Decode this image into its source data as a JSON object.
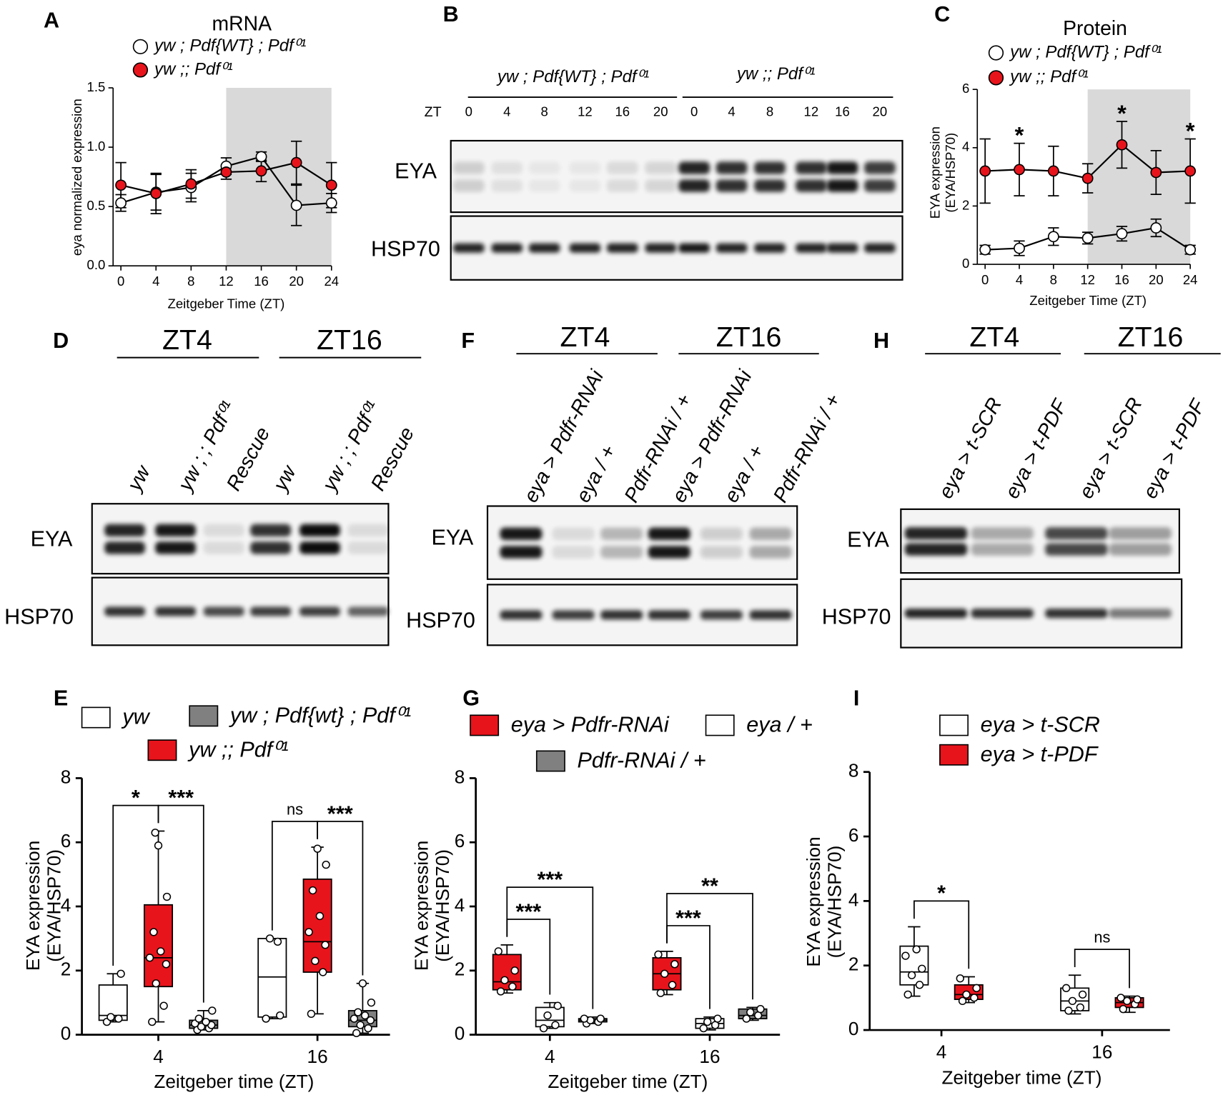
{
  "chart_data": [
    {
      "type": "line",
      "panel_label": "A",
      "title": "mRNA",
      "xlabel": "Zeitgeber Time (ZT)",
      "ylabel": "eya normalized expression",
      "x": [
        0,
        4,
        8,
        12,
        16,
        20,
        24
      ],
      "xlim": [
        0,
        24
      ],
      "xticks": [
        0,
        4,
        8,
        12,
        16,
        20,
        24
      ],
      "ylim": [
        0,
        1.5
      ],
      "yticks": [
        {
          "value": 0,
          "label": "0.0"
        },
        {
          "value": 0.5,
          "label": "0.5"
        },
        {
          "value": 1,
          "label": "1.0"
        },
        {
          "value": 1.5,
          "label": "1.5"
        }
      ],
      "shaded_x": [
        12,
        24
      ],
      "series": [
        {
          "name": "yw ; Pdf{WT} ; Pdf⁰¹",
          "color": "#ffffff",
          "values": [
            0.53,
            0.62,
            0.66,
            0.84,
            0.92,
            0.51,
            0.53
          ],
          "errors": [
            0.07,
            0.15,
            0.12,
            0.07,
            0.04,
            0.17,
            0.08
          ]
        },
        {
          "name": "yw ;; Pdf⁰¹",
          "color": "#e8141c",
          "values": [
            0.68,
            0.61,
            0.69,
            0.79,
            0.8,
            0.87,
            0.68
          ],
          "errors": [
            0.19,
            0.17,
            0.12,
            0.06,
            0.09,
            0.18,
            0.19
          ]
        }
      ]
    },
    {
      "type": "line",
      "panel_label": "C",
      "title": "Protein",
      "xlabel": "Zeitgeber Time (ZT)",
      "ylabel": [
        "EYA expression",
        "(EYA/HSP70)"
      ],
      "x": [
        0,
        4,
        8,
        12,
        16,
        20,
        24
      ],
      "xlim": [
        0,
        24
      ],
      "xticks": [
        0,
        4,
        8,
        12,
        16,
        20,
        24
      ],
      "ylim": [
        0,
        6
      ],
      "yticks": [
        0,
        2,
        4,
        6
      ],
      "shaded_x": [
        12,
        24
      ],
      "series": [
        {
          "name": "yw ; Pdf{WT} ; Pdf⁰¹",
          "color": "#ffffff",
          "values": [
            0.5,
            0.55,
            0.95,
            0.9,
            1.05,
            1.25,
            0.5
          ],
          "errors": [
            0.15,
            0.25,
            0.3,
            0.2,
            0.25,
            0.3,
            0.15
          ]
        },
        {
          "name": "yw ;; Pdf⁰¹",
          "color": "#e8141c",
          "values": [
            3.2,
            3.25,
            3.2,
            2.95,
            4.1,
            3.15,
            3.2
          ],
          "errors": [
            1.1,
            0.9,
            0.85,
            0.5,
            0.8,
            0.75,
            1.1
          ]
        }
      ],
      "annotations": [
        {
          "x": 4,
          "label": "*"
        },
        {
          "x": 16,
          "label": "*"
        },
        {
          "x": 24,
          "label": "*"
        }
      ]
    },
    {
      "type": "box",
      "panel_label": "E",
      "xlabel": "Zeitgeber time (ZT)",
      "ylabel": [
        "EYA expression",
        "(EYA/HSP70)"
      ],
      "categories": [
        "4",
        "16"
      ],
      "ylim": [
        0,
        8
      ],
      "yticks": [
        0,
        2,
        4,
        6,
        8
      ],
      "series": [
        {
          "name": "yw",
          "color": "#ffffff",
          "boxes": [
            {
              "min": 0.4,
              "q1": 0.45,
              "median": 0.6,
              "q3": 1.55,
              "max": 1.9,
              "points": [
                0.4,
                0.5,
                0.55,
                1.9
              ]
            },
            {
              "min": 0.5,
              "q1": 0.55,
              "median": 1.8,
              "q3": 3.0,
              "max": 3.0,
              "points": [
                0.5,
                2.9,
                3.0,
                0.6
              ]
            }
          ]
        },
        {
          "name": "yw ;; Pdf⁰¹",
          "color": "#e8141c",
          "boxes": [
            {
              "min": 0.4,
              "q1": 1.5,
              "median": 2.4,
              "q3": 4.05,
              "max": 6.35,
              "points": [
                0.4,
                0.9,
                1.6,
                2.2,
                2.4,
                2.6,
                3.2,
                4.3,
                5.9,
                6.3
              ]
            },
            {
              "min": 0.65,
              "q1": 1.95,
              "median": 2.9,
              "q3": 4.85,
              "max": 5.85,
              "points": [
                0.65,
                1.95,
                2.3,
                2.8,
                3.2,
                3.7,
                4.5,
                5.3,
                5.8
              ]
            }
          ]
        },
        {
          "name": "yw ; Pdf{wt} ; Pdf⁰¹",
          "color": "#808080",
          "boxes": [
            {
              "min": 0.15,
              "q1": 0.2,
              "median": 0.3,
              "q3": 0.45,
              "max": 0.75,
              "points": [
                0.15,
                0.2,
                0.25,
                0.3,
                0.35,
                0.4,
                0.5,
                0.75
              ]
            },
            {
              "min": 0.05,
              "q1": 0.25,
              "median": 0.45,
              "q3": 0.75,
              "max": 1.6,
              "points": [
                0.05,
                0.2,
                0.3,
                0.45,
                0.5,
                0.6,
                0.7,
                1.0,
                1.6
              ]
            }
          ]
        }
      ],
      "comparisons": [
        {
          "category": 0,
          "series": [
            0,
            1
          ],
          "label": "*"
        },
        {
          "category": 0,
          "series": [
            1,
            2
          ],
          "label": "***"
        },
        {
          "category": 1,
          "series": [
            0,
            1
          ],
          "label": "ns"
        },
        {
          "category": 1,
          "series": [
            1,
            2
          ],
          "label": "***"
        }
      ]
    },
    {
      "type": "box",
      "panel_label": "G",
      "xlabel": "Zeitgeber time (ZT)",
      "ylabel": [
        "EYA expression",
        "(EYA/HSP70)"
      ],
      "categories": [
        "4",
        "16"
      ],
      "ylim": [
        0,
        8
      ],
      "yticks": [
        0,
        2,
        4,
        6,
        8
      ],
      "series": [
        {
          "name": "eya > Pdfr-RNAi",
          "color": "#e8141c",
          "boxes": [
            {
              "min": 1.3,
              "q1": 1.4,
              "median": 1.65,
              "q3": 2.5,
              "max": 2.8,
              "points": [
                1.35,
                1.5,
                1.7,
                2.0,
                2.6
              ]
            },
            {
              "min": 1.25,
              "q1": 1.4,
              "median": 1.9,
              "q3": 2.4,
              "max": 2.6,
              "points": [
                1.3,
                1.55,
                1.9,
                2.2,
                2.5
              ]
            }
          ]
        },
        {
          "name": "eya / +",
          "color": "#ffffff",
          "boxes": [
            {
              "min": 0.2,
              "q1": 0.25,
              "median": 0.45,
              "q3": 0.85,
              "max": 1.0,
              "points": [
                0.2,
                0.3,
                0.6,
                0.9
              ]
            },
            {
              "min": 0.15,
              "q1": 0.2,
              "median": 0.35,
              "q3": 0.5,
              "max": 0.55,
              "points": [
                0.2,
                0.3,
                0.4,
                0.5
              ]
            }
          ]
        },
        {
          "name": "Pdfr-RNAi / +",
          "color": "#808080",
          "boxes": [
            {
              "min": 0.35,
              "q1": 0.4,
              "median": 0.45,
              "q3": 0.5,
              "max": 0.55,
              "points": [
                0.35,
                0.4,
                0.45,
                0.5,
                0.5
              ]
            },
            {
              "min": 0.45,
              "q1": 0.5,
              "median": 0.6,
              "q3": 0.8,
              "max": 0.85,
              "points": [
                0.5,
                0.6,
                0.7,
                0.8
              ]
            }
          ]
        }
      ],
      "comparisons": [
        {
          "category": 0,
          "series": [
            0,
            1
          ],
          "label": "***"
        },
        {
          "category": 0,
          "series": [
            0,
            2
          ],
          "label": "***"
        },
        {
          "category": 1,
          "series": [
            0,
            1
          ],
          "label": "***"
        },
        {
          "category": 1,
          "series": [
            0,
            2
          ],
          "label": "**"
        }
      ]
    },
    {
      "type": "box",
      "panel_label": "I",
      "xlabel": "Zeitgeber time (ZT)",
      "ylabel": [
        "EYA expression",
        "(EYA/HSP70)"
      ],
      "categories": [
        "4",
        "16"
      ],
      "ylim": [
        0,
        8
      ],
      "yticks": [
        0,
        2,
        4,
        6,
        8
      ],
      "series": [
        {
          "name": "eya > t-SCR",
          "color": "#ffffff",
          "boxes": [
            {
              "min": 1.05,
              "q1": 1.4,
              "median": 1.8,
              "q3": 2.6,
              "max": 3.2,
              "points": [
                1.1,
                1.4,
                1.7,
                1.9,
                2.3,
                2.5
              ]
            },
            {
              "min": 0.5,
              "q1": 0.6,
              "median": 0.9,
              "q3": 1.3,
              "max": 1.7,
              "points": [
                0.6,
                0.7,
                0.9,
                1.1,
                1.3
              ]
            }
          ]
        },
        {
          "name": "eya > t-PDF",
          "color": "#e8141c",
          "boxes": [
            {
              "min": 0.85,
              "q1": 0.95,
              "median": 1.1,
              "q3": 1.4,
              "max": 1.65,
              "points": [
                0.9,
                1.0,
                1.1,
                1.3,
                1.6
              ]
            },
            {
              "min": 0.55,
              "q1": 0.7,
              "median": 0.85,
              "q3": 1.0,
              "max": 1.05,
              "points": [
                0.65,
                0.8,
                0.9,
                0.95,
                1.0
              ]
            }
          ]
        }
      ],
      "comparisons": [
        {
          "category": 0,
          "series": [
            0,
            1
          ],
          "label": "*"
        },
        {
          "category": 1,
          "series": [
            0,
            1
          ],
          "label": "ns"
        }
      ]
    }
  ],
  "blots": [
    {
      "panel_label": "B",
      "groups": [
        "yw ; Pdf{WT} ; Pdf⁰¹",
        "yw ;; Pdf⁰¹"
      ],
      "lane_heading": "ZT",
      "lanes": [
        "0",
        "4",
        "8",
        "12",
        "16",
        "20",
        "0",
        "4",
        "8",
        "12",
        "16",
        "20"
      ],
      "rows": [
        "EYA",
        "HSP70"
      ]
    },
    {
      "panel_label": "D",
      "groups": [
        "ZT4",
        "ZT16"
      ],
      "lanes": [
        "yw",
        "yw ; ; Pdf⁰¹",
        "Rescue",
        "yw",
        "yw ; ; Pdf⁰¹",
        "Rescue"
      ],
      "rows": [
        "EYA",
        "HSP70"
      ]
    },
    {
      "panel_label": "F",
      "groups": [
        "ZT4",
        "ZT16"
      ],
      "lanes": [
        "eya > Pdfr-RNAi",
        "eya / +",
        "Pdfr-RNAi / +",
        "eya > Pdfr-RNAi",
        "eya / +",
        "Pdfr-RNAi / +"
      ],
      "rows": [
        "EYA",
        "HSP70"
      ]
    },
    {
      "panel_label": "H",
      "groups": [
        "ZT4",
        "ZT16"
      ],
      "lanes": [
        "eya > t-SCR",
        "eya > t-PDF",
        "eya > t-SCR",
        "eya > t-PDF"
      ],
      "rows": [
        "EYA",
        "HSP70"
      ]
    }
  ]
}
